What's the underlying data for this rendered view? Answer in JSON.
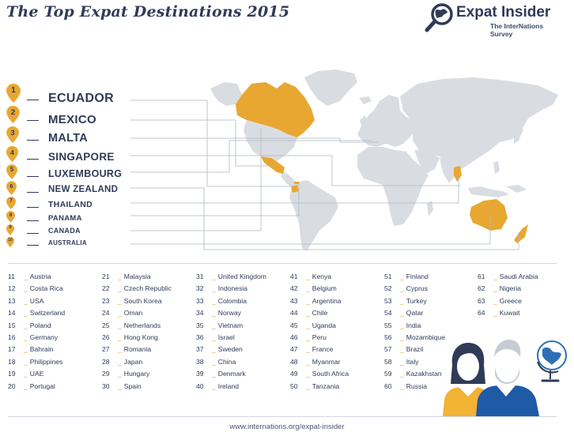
{
  "title": "The Top Expat Destinations 2015",
  "logo": {
    "name": "Expat Insider",
    "subtitle": "The InterNations Survey",
    "icon": "magnifier-globe-icon"
  },
  "colors": {
    "navy": "#2f3b57",
    "orange": "#e8a731",
    "map_gray": "#d9dde2",
    "highlight": "#e8a731"
  },
  "top10": [
    {
      "rank": "1",
      "country": "ECUADOR"
    },
    {
      "rank": "2",
      "country": "MEXICO"
    },
    {
      "rank": "3",
      "country": "MALTA"
    },
    {
      "rank": "4",
      "country": "SINGAPORE"
    },
    {
      "rank": "5",
      "country": "LUXEMBOURG"
    },
    {
      "rank": "6",
      "country": "NEW ZEALAND"
    },
    {
      "rank": "7",
      "country": "THAILAND"
    },
    {
      "rank": "8",
      "country": "PANAMA"
    },
    {
      "rank": "9",
      "country": "CANADA"
    },
    {
      "rank": "10",
      "country": "AUSTRALIA"
    }
  ],
  "rest": [
    [
      {
        "rank": "11",
        "country": "Austria"
      },
      {
        "rank": "12",
        "country": "Costa Rica"
      },
      {
        "rank": "13",
        "country": "USA"
      },
      {
        "rank": "14",
        "country": "Switzerland"
      },
      {
        "rank": "15",
        "country": "Poland"
      },
      {
        "rank": "16",
        "country": "Germany"
      },
      {
        "rank": "17",
        "country": "Bahrain"
      },
      {
        "rank": "18",
        "country": "Philippines"
      },
      {
        "rank": "19",
        "country": "UAE"
      },
      {
        "rank": "20",
        "country": "Portugal"
      }
    ],
    [
      {
        "rank": "21",
        "country": "Malaysia"
      },
      {
        "rank": "22",
        "country": "Czech Republic"
      },
      {
        "rank": "23",
        "country": "South Korea"
      },
      {
        "rank": "24",
        "country": "Oman"
      },
      {
        "rank": "25",
        "country": "Netherlands"
      },
      {
        "rank": "26",
        "country": "Hong Kong"
      },
      {
        "rank": "27",
        "country": "Romania"
      },
      {
        "rank": "28",
        "country": "Japan"
      },
      {
        "rank": "29",
        "country": "Hungary"
      },
      {
        "rank": "30",
        "country": "Spain"
      }
    ],
    [
      {
        "rank": "31",
        "country": "United Kingdom"
      },
      {
        "rank": "32",
        "country": "Indonesia"
      },
      {
        "rank": "33",
        "country": "Colombia"
      },
      {
        "rank": "34",
        "country": "Norway"
      },
      {
        "rank": "35",
        "country": "Vietnam"
      },
      {
        "rank": "36",
        "country": "Israel"
      },
      {
        "rank": "37",
        "country": "Sweden"
      },
      {
        "rank": "38",
        "country": "China"
      },
      {
        "rank": "39",
        "country": "Denmark"
      },
      {
        "rank": "40",
        "country": "Ireland"
      }
    ],
    [
      {
        "rank": "41",
        "country": "Kenya"
      },
      {
        "rank": "42",
        "country": "Belgium"
      },
      {
        "rank": "43",
        "country": "Argentina"
      },
      {
        "rank": "44",
        "country": "Chile"
      },
      {
        "rank": "45",
        "country": "Uganda"
      },
      {
        "rank": "46",
        "country": "Peru"
      },
      {
        "rank": "47",
        "country": "France"
      },
      {
        "rank": "48",
        "country": "Myanmar"
      },
      {
        "rank": "49",
        "country": "South Africa"
      },
      {
        "rank": "50",
        "country": "Tanzania"
      }
    ],
    [
      {
        "rank": "51",
        "country": "Finland"
      },
      {
        "rank": "52",
        "country": "Cyprus"
      },
      {
        "rank": "53",
        "country": "Turkey"
      },
      {
        "rank": "54",
        "country": "Qatar"
      },
      {
        "rank": "55",
        "country": "India"
      },
      {
        "rank": "56",
        "country": "Mozambique"
      },
      {
        "rank": "57",
        "country": "Brazil"
      },
      {
        "rank": "58",
        "country": "Italy"
      },
      {
        "rank": "59",
        "country": "Kazakhstan"
      },
      {
        "rank": "60",
        "country": "Russia"
      }
    ],
    [
      {
        "rank": "61",
        "country": "Saudi Arabia"
      },
      {
        "rank": "62",
        "country": "Nigeria"
      },
      {
        "rank": "63",
        "country": "Greece"
      },
      {
        "rank": "64",
        "country": "Kuwait"
      }
    ]
  ],
  "footer": "www.internations.org/expat-insider"
}
